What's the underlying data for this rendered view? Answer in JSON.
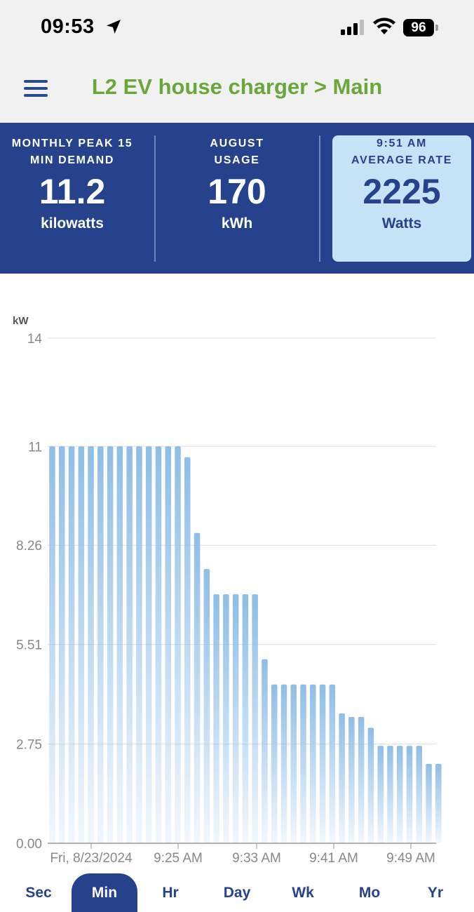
{
  "status_bar": {
    "time": "09:53",
    "battery": "96"
  },
  "header": {
    "title": "L2 EV house charger > Main"
  },
  "stats": [
    {
      "label": "MONTHLY PEAK 15 MIN DEMAND",
      "value": "11.2",
      "unit": "kilowatts"
    },
    {
      "label": "AUGUST USAGE",
      "value": "170",
      "unit": "kWh"
    },
    {
      "label": "9:51 AM AVERAGE RATE",
      "value": "2225",
      "unit": "Watts"
    }
  ],
  "chart_data": {
    "type": "bar",
    "ylabel": "kW",
    "ylim": [
      0,
      14
    ],
    "yticks": [
      "0.00",
      "2.75",
      "5.51",
      "8.26",
      "11",
      "14"
    ],
    "ytick_values": [
      0,
      2.75,
      5.51,
      8.26,
      11,
      14
    ],
    "xtick_labels": [
      "Fri, 8/23/2024",
      "9:25 AM",
      "9:33 AM",
      "9:41 AM",
      "9:49 AM"
    ],
    "values": [
      11,
      11,
      11,
      11,
      11,
      11,
      11,
      11,
      11,
      11,
      11,
      11,
      11,
      11,
      10.7,
      8.6,
      7.6,
      6.9,
      6.9,
      6.9,
      6.9,
      6.9,
      5.1,
      4.4,
      4.4,
      4.4,
      4.4,
      4.4,
      4.4,
      4.4,
      3.6,
      3.5,
      3.5,
      3.2,
      2.7,
      2.7,
      2.7,
      2.7,
      2.7,
      2.2,
      2.2
    ],
    "bar_color": "#8fbde6",
    "grid": true
  },
  "tabs": [
    {
      "label": "Sec",
      "active": false
    },
    {
      "label": "Min",
      "active": true
    },
    {
      "label": "Hr",
      "active": false
    },
    {
      "label": "Day",
      "active": false
    },
    {
      "label": "Wk",
      "active": false
    },
    {
      "label": "Mo",
      "active": false
    },
    {
      "label": "Yr",
      "active": false
    }
  ]
}
